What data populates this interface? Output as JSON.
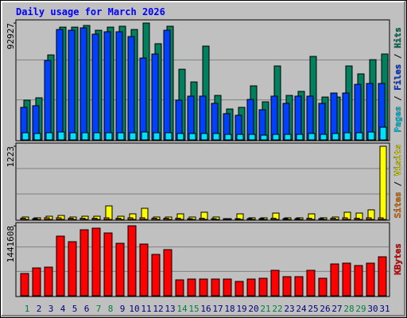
{
  "title": "Daily usage for March 2026",
  "legend_separator": "/",
  "chart_data": [
    {
      "type": "bar",
      "ylim": [
        0,
        92927
      ],
      "yticks": [
        92927
      ],
      "series": [
        {
          "name": "Hits",
          "color": "#00805c",
          "values": [
            31600,
            33500,
            67600,
            89700,
            89700,
            91000,
            87200,
            89700,
            90400,
            87800,
            92927,
            76500,
            90400,
            56200,
            46100,
            74600,
            35400,
            24600,
            25900,
            43000,
            30300,
            58800,
            35400,
            38600,
            66400,
            34100,
            34100,
            58800,
            52500,
            63800,
            68300
          ]
        },
        {
          "name": "Files",
          "color": "#0040ff",
          "values": [
            25900,
            27200,
            63200,
            87800,
            87200,
            89100,
            84100,
            86000,
            86000,
            82200,
            65100,
            68300,
            87200,
            31600,
            34800,
            34800,
            29100,
            20900,
            19600,
            32200,
            24000,
            34800,
            29100,
            34800,
            34800,
            29100,
            37300,
            37300,
            44200,
            44900,
            44900
          ]
        },
        {
          "name": "Pages",
          "color": "#00e0ff",
          "values": [
            5700,
            5100,
            5700,
            6300,
            5700,
            5700,
            5700,
            5700,
            5700,
            5700,
            6300,
            5700,
            5700,
            5100,
            5100,
            5100,
            5100,
            4400,
            4400,
            4400,
            3800,
            4400,
            4400,
            4400,
            5100,
            4400,
            5100,
            5700,
            5700,
            6300,
            10100
          ]
        }
      ]
    },
    {
      "type": "bar",
      "ylim": [
        0,
        1223
      ],
      "yticks": [
        1223
      ],
      "series": [
        {
          "name": "Visits",
          "color": "#ffff00",
          "values": [
            40,
            27,
            53,
            66,
            40,
            53,
            53,
            226,
            53,
            93,
            186,
            40,
            40,
            93,
            40,
            120,
            40,
            13,
            93,
            27,
            27,
            106,
            27,
            27,
            93,
            27,
            40,
            120,
            106,
            160,
            1223
          ]
        },
        {
          "name": "Sites",
          "color": "#ff8000",
          "values": [
            20,
            13,
            27,
            27,
            20,
            20,
            20,
            27,
            20,
            27,
            27,
            20,
            20,
            20,
            13,
            20,
            13,
            13,
            13,
            13,
            13,
            20,
            13,
            13,
            20,
            13,
            20,
            27,
            20,
            27,
            27
          ]
        }
      ]
    },
    {
      "type": "bar",
      "ylim": [
        0,
        1441608
      ],
      "yticks": [
        1441608
      ],
      "categories": [
        "1",
        "2",
        "3",
        "4",
        "5",
        "6",
        "7",
        "8",
        "9",
        "10",
        "11",
        "12",
        "13",
        "14",
        "15",
        "16",
        "17",
        "18",
        "19",
        "20",
        "21",
        "22",
        "23",
        "24",
        "25",
        "26",
        "27",
        "28",
        "29",
        "30",
        "31"
      ],
      "category_colors": [
        "#008040",
        "#000080",
        "#000080",
        "#000080",
        "#000080",
        "#000080",
        "#008040",
        "#008040",
        "#000080",
        "#000080",
        "#000080",
        "#000080",
        "#000080",
        "#008040",
        "#008040",
        "#000080",
        "#000080",
        "#000080",
        "#000080",
        "#000080",
        "#008040",
        "#008040",
        "#000080",
        "#000080",
        "#000080",
        "#000080",
        "#000080",
        "#008040",
        "#008040",
        "#000080",
        "#000080"
      ],
      "series": [
        {
          "name": "KBytes",
          "color": "#ff0000",
          "values": [
            458700,
            573400,
            589800,
            1228600,
            1114000,
            1359700,
            1392500,
            1294200,
            1081200,
            1441608,
            1064800,
            851900,
            950200,
            327600,
            344000,
            344000,
            344000,
            344000,
            294900,
            344000,
            360400,
            524200,
            393200,
            393200,
            524200,
            360400,
            655300,
            671700,
            622500,
            671700,
            802700
          ]
        }
      ]
    }
  ]
}
